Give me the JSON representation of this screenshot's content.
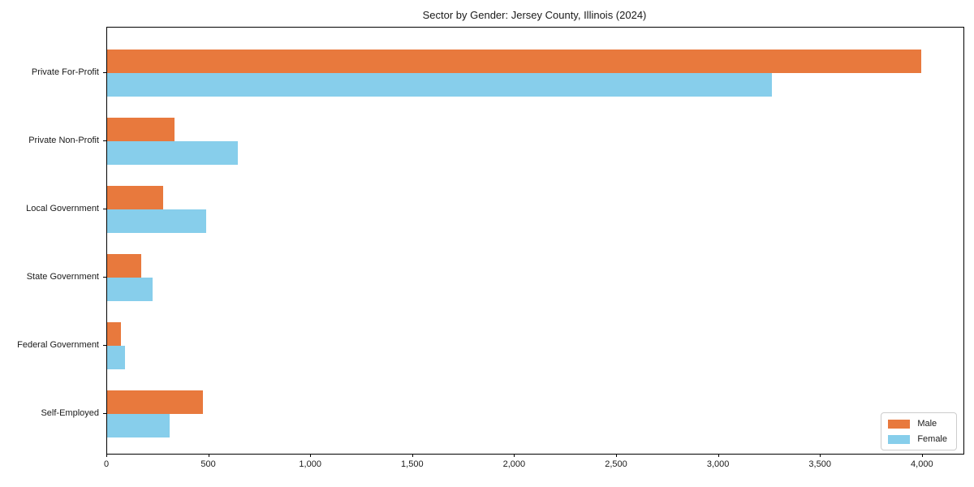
{
  "chart": {
    "title": "Sector by Gender: Jersey County, Illinois (2024)",
    "legend": {
      "items": [
        {
          "label": "Male",
          "color": "#E8793D"
        },
        {
          "label": "Female",
          "color": "#87CEEB"
        }
      ],
      "position": "lower right"
    }
  },
  "chart_data": {
    "type": "bar",
    "orientation": "horizontal",
    "title": "Sector by Gender: Jersey County, Illinois (2024)",
    "categories": [
      "Private For-Profit",
      "Private Non-Profit",
      "Local Government",
      "State Government",
      "Federal Government",
      "Self-Employed"
    ],
    "series": [
      {
        "name": "Male",
        "color": "#E8793D",
        "values": [
          3994,
          331,
          275,
          168,
          68,
          469
        ]
      },
      {
        "name": "Female",
        "color": "#87CEEB",
        "values": [
          3259,
          640,
          486,
          224,
          87,
          306
        ]
      }
    ],
    "xlabel": "",
    "ylabel": "",
    "xlim": [
      0,
      4200
    ],
    "xticks": [
      0,
      500,
      1000,
      1500,
      2000,
      2500,
      3000,
      3500,
      4000
    ],
    "grid": false,
    "legend_position": "lower right",
    "background_color": "#ffffff",
    "axis_color": "#000000"
  }
}
